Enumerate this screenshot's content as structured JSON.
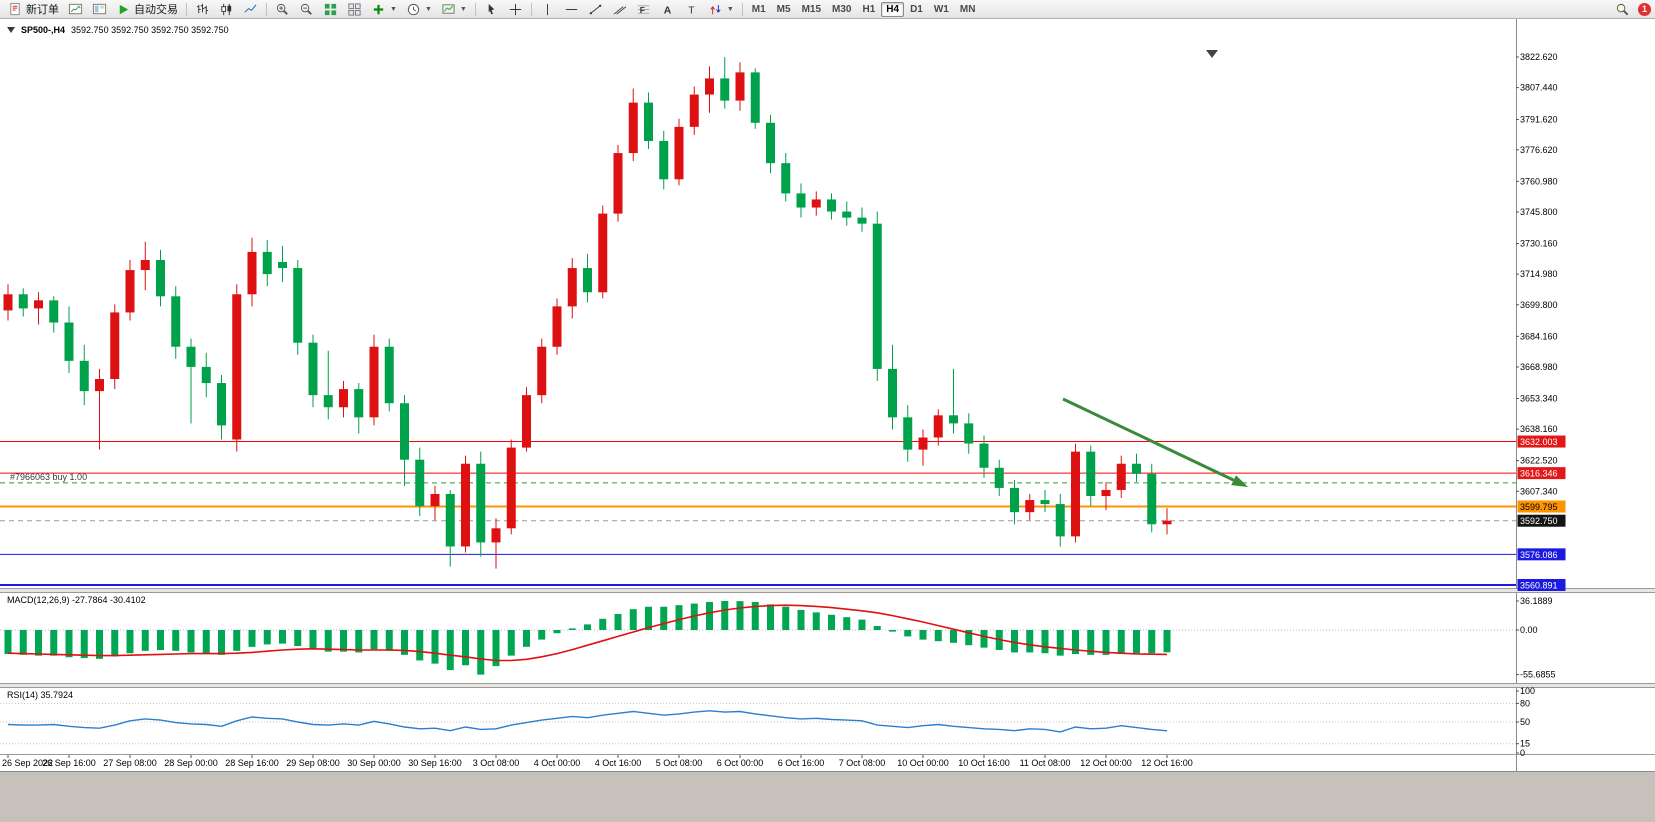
{
  "toolbar": {
    "new_order_label": "新订单",
    "autotrade_label": "自动交易",
    "timeframes": [
      "M1",
      "M5",
      "M15",
      "M30",
      "H1",
      "H4",
      "D1",
      "W1",
      "MN"
    ],
    "active_timeframe": "H4",
    "notification_count": "1"
  },
  "chart": {
    "title_symbol": "SP500-,H4",
    "title_ohlc": "3592.750 3592.750 3592.750 3592.750",
    "macd_label": "MACD(12,26,9) -27.7864 -30.4102",
    "rsi_label": "RSI(14) 35.7924",
    "position_label": "#7966063 buy 1.00",
    "price_axis_labels": [
      "3822.620",
      "3807.440",
      "3791.620",
      "3776.620",
      "3760.980",
      "3745.800",
      "3730.160",
      "3714.980",
      "3699.800",
      "3684.160",
      "3668.980",
      "3653.340",
      "3638.160",
      "3622.520",
      "3607.340"
    ],
    "macd_axis_labels": [
      {
        "text": "36.1889",
        "value": 36.1889
      },
      {
        "text": "0.00",
        "value": 0
      },
      {
        "text": "-55.6855",
        "value": -55.6855
      }
    ],
    "rsi_axis_labels": [
      {
        "text": "100",
        "value": 100
      },
      {
        "text": "80",
        "value": 80
      },
      {
        "text": "50",
        "value": 50
      },
      {
        "text": "15",
        "value": 15
      },
      {
        "text": "0",
        "value": 0
      }
    ],
    "rsi_levels": [
      80,
      50,
      15
    ],
    "time_axis_labels": [
      "26 Sep 2022",
      "26 Sep 16:00",
      "27 Sep 08:00",
      "28 Sep 00:00",
      "28 Sep 16:00",
      "29 Sep 08:00",
      "30 Sep 00:00",
      "30 Sep 16:00",
      "3 Oct 08:00",
      "4 Oct 00:00",
      "4 Oct 16:00",
      "5 Oct 08:00",
      "6 Oct 00:00",
      "6 Oct 16:00",
      "7 Oct 08:00",
      "10 Oct 00:00",
      "10 Oct 16:00",
      "11 Oct 08:00",
      "12 Oct 00:00",
      "12 Oct 16:00"
    ],
    "price_lines": [
      {
        "name": "resistance-line-1",
        "price": 3632.003,
        "label": "3632.003",
        "color": "#ff0000",
        "tag_color": "#e21717",
        "tag_text": "#ffffff",
        "style": "solid",
        "width": 1,
        "tag": true
      },
      {
        "name": "resistance-line-2",
        "price": 3616.346,
        "label": "3616.346",
        "color": "#ff0000",
        "tag_color": "#e21717",
        "tag_text": "#ffffff",
        "style": "solid",
        "width": 1,
        "tag": true
      },
      {
        "name": "buy-position-line",
        "price": 3611.5,
        "label": "#7966063 buy 1.00",
        "color": "#2e9e2e",
        "tag_color": "#2e9e2e",
        "tag_text": "#ffffff",
        "style": "dashed",
        "width": 1,
        "tag": false
      },
      {
        "name": "pending-order-line",
        "price": 3599.795,
        "label": "3599.795",
        "color": "#ff9400",
        "tag_color": "#ff9400",
        "tag_text": "#000000",
        "style": "solid",
        "width": 2,
        "tag": true
      },
      {
        "name": "bid-price-line",
        "price": 3592.75,
        "label": "3592.750",
        "color": "#9a9a9a",
        "tag_color": "#141414",
        "tag_text": "#ffffff",
        "style": "dashed",
        "width": 1,
        "tag": true
      },
      {
        "name": "support-line-1",
        "price": 3576.086,
        "label": "3576.086",
        "color": "#1a1ae0",
        "tag_color": "#1a1ae0",
        "tag_text": "#ffffff",
        "style": "solid",
        "width": 1,
        "tag": true
      },
      {
        "name": "support-line-2",
        "price": 3560.891,
        "label": "3560.891",
        "color": "#1a1ae0",
        "tag_color": "#1a1ae0",
        "tag_text": "#ffffff",
        "style": "solid",
        "width": 2,
        "tag": true
      }
    ]
  },
  "chart_data": {
    "type": "candlestick",
    "symbol": "SP500-",
    "period": "H4",
    "current_ohlc": [
      3592.75,
      3592.75,
      3592.75,
      3592.75
    ],
    "price_range": [
      3560.891,
      3822.62
    ],
    "candles": [
      [
        3697,
        3710,
        3692,
        3705
      ],
      [
        3705,
        3708,
        3694,
        3698
      ],
      [
        3698,
        3706,
        3690,
        3702
      ],
      [
        3702,
        3704,
        3686,
        3691
      ],
      [
        3691,
        3699,
        3666,
        3672
      ],
      [
        3672,
        3680,
        3650,
        3657
      ],
      [
        3657,
        3668,
        3628,
        3663
      ],
      [
        3663,
        3700,
        3658,
        3696
      ],
      [
        3696,
        3722,
        3692,
        3717
      ],
      [
        3717,
        3731,
        3707,
        3722
      ],
      [
        3722,
        3727,
        3699,
        3704
      ],
      [
        3704,
        3709,
        3673,
        3679
      ],
      [
        3679,
        3683,
        3641,
        3669
      ],
      [
        3669,
        3676,
        3654,
        3661
      ],
      [
        3661,
        3665,
        3633,
        3640
      ],
      [
        3633,
        3710,
        3627,
        3705
      ],
      [
        3705,
        3733,
        3699,
        3726
      ],
      [
        3726,
        3732,
        3709,
        3715
      ],
      [
        3721,
        3729,
        3711,
        3718
      ],
      [
        3718,
        3722,
        3675,
        3681
      ],
      [
        3681,
        3685,
        3649,
        3655
      ],
      [
        3655,
        3677,
        3643,
        3649
      ],
      [
        3649,
        3662,
        3644,
        3658
      ],
      [
        3658,
        3661,
        3636,
        3644
      ],
      [
        3644,
        3685,
        3640,
        3679
      ],
      [
        3679,
        3683,
        3647,
        3651
      ],
      [
        3651,
        3655,
        3610,
        3623
      ],
      [
        3623,
        3629,
        3595,
        3600
      ],
      [
        3600,
        3610,
        3593,
        3606
      ],
      [
        3606,
        3608,
        3570,
        3580
      ],
      [
        3580,
        3625,
        3577,
        3621
      ],
      [
        3621,
        3627,
        3575,
        3582
      ],
      [
        3582,
        3594,
        3569,
        3589
      ],
      [
        3589,
        3633,
        3586,
        3629
      ],
      [
        3629,
        3659,
        3627,
        3655
      ],
      [
        3655,
        3683,
        3651,
        3679
      ],
      [
        3679,
        3703,
        3675,
        3699
      ],
      [
        3699,
        3723,
        3693,
        3718
      ],
      [
        3718,
        3725,
        3701,
        3706
      ],
      [
        3706,
        3749,
        3703,
        3745
      ],
      [
        3745,
        3779,
        3741,
        3775
      ],
      [
        3775,
        3807,
        3771,
        3800
      ],
      [
        3800,
        3805,
        3777,
        3781
      ],
      [
        3781,
        3786,
        3757,
        3762
      ],
      [
        3762,
        3792,
        3759,
        3788
      ],
      [
        3788,
        3808,
        3784,
        3804
      ],
      [
        3804,
        3818,
        3795,
        3812
      ],
      [
        3812,
        3822.6,
        3797,
        3801
      ],
      [
        3801,
        3820,
        3796,
        3815
      ],
      [
        3815,
        3817,
        3787,
        3790
      ],
      [
        3790,
        3794,
        3765,
        3770
      ],
      [
        3770,
        3775,
        3751,
        3755
      ],
      [
        3755,
        3760,
        3743,
        3748
      ],
      [
        3748,
        3756,
        3744,
        3752
      ],
      [
        3752,
        3755,
        3742,
        3746
      ],
      [
        3746,
        3751,
        3739,
        3743
      ],
      [
        3743,
        3748,
        3736,
        3740
      ],
      [
        3740,
        3746,
        3662,
        3668
      ],
      [
        3668,
        3680,
        3638,
        3644
      ],
      [
        3644,
        3650,
        3622,
        3628
      ],
      [
        3628,
        3638,
        3620,
        3634
      ],
      [
        3634,
        3648,
        3630,
        3645
      ],
      [
        3645,
        3668,
        3636,
        3641
      ],
      [
        3641,
        3646,
        3626,
        3631
      ],
      [
        3631,
        3635,
        3614,
        3619
      ],
      [
        3619,
        3623,
        3605,
        3609
      ],
      [
        3609,
        3613,
        3591,
        3597
      ],
      [
        3597,
        3606,
        3593,
        3603
      ],
      [
        3603,
        3608,
        3597,
        3601
      ],
      [
        3601,
        3606,
        3580,
        3585
      ],
      [
        3585,
        3631,
        3582,
        3627
      ],
      [
        3627,
        3630,
        3600,
        3605
      ],
      [
        3605,
        3612,
        3598,
        3608
      ],
      [
        3608,
        3625,
        3604,
        3621
      ],
      [
        3621,
        3626,
        3612,
        3616
      ],
      [
        3616,
        3621,
        3587,
        3591
      ],
      [
        3591,
        3599,
        3586,
        3592.75
      ]
    ],
    "indicators": {
      "macd": {
        "params": "12,26,9",
        "last_macd": -27.7864,
        "last_signal": -30.4102,
        "scale_max": 36.1889,
        "scale_min": -55.6855,
        "histogram": [
          -30,
          -31,
          -32,
          -32,
          -34,
          -35,
          -36,
          -33,
          -29,
          -26,
          -25,
          -26,
          -28,
          -29,
          -31,
          -26,
          -21,
          -18,
          -17,
          -20,
          -24,
          -27,
          -27,
          -28,
          -24,
          -26,
          -31,
          -38,
          -42,
          -50,
          -44,
          -55.69,
          -45,
          -32,
          -21,
          -12,
          -4,
          2,
          7,
          14,
          20,
          26,
          29,
          29,
          31,
          33,
          35,
          36.19,
          36,
          35,
          32,
          29,
          25,
          22,
          19,
          16,
          13,
          5,
          -2,
          -8,
          -12,
          -14,
          -16,
          -19,
          -22,
          -25,
          -28,
          -28,
          -29,
          -32,
          -30,
          -31,
          -31,
          -30,
          -29,
          -29,
          -27.79
        ],
        "signal": [
          -29,
          -29.5,
          -30,
          -30.5,
          -31,
          -31.5,
          -32,
          -32,
          -31.5,
          -31,
          -30.5,
          -30,
          -29.5,
          -29.5,
          -29.5,
          -29,
          -28,
          -26.5,
          -25,
          -24,
          -23.5,
          -24,
          -24.5,
          -25,
          -25,
          -25,
          -25.5,
          -27,
          -29,
          -31.5,
          -33.5,
          -36,
          -38,
          -38,
          -36.5,
          -33.5,
          -29.5,
          -24.5,
          -19,
          -13.5,
          -8,
          -2.5,
          3,
          8,
          13,
          17.5,
          21.5,
          25,
          27.5,
          29.5,
          30.5,
          31,
          30.5,
          29.5,
          28,
          26,
          24,
          21.5,
          18,
          14,
          10,
          5.5,
          1,
          -3.5,
          -8,
          -12,
          -15.5,
          -18.5,
          -21,
          -23,
          -25,
          -26.5,
          -28,
          -29,
          -29.8,
          -30.2,
          -30.41
        ]
      },
      "rsi": {
        "params": "14",
        "last": 35.7924,
        "values": [
          46,
          45,
          45,
          46,
          43,
          41,
          40,
          45,
          52,
          55,
          53,
          49,
          47,
          46,
          43,
          52,
          58,
          56,
          55,
          50,
          46,
          45,
          47,
          45,
          51,
          47,
          42,
          39,
          40,
          36,
          42,
          38,
          39,
          45,
          49,
          53,
          56,
          59,
          57,
          61,
          64,
          67,
          64,
          61,
          63,
          66,
          68,
          66,
          67,
          63,
          60,
          57,
          55,
          56,
          54,
          53,
          52,
          45,
          43,
          41,
          44,
          46,
          43,
          41,
          39,
          38,
          36,
          39,
          38,
          34,
          42,
          39,
          40,
          44,
          41,
          38,
          35.79
        ]
      }
    },
    "annotations": [
      {
        "type": "arrow",
        "name": "downtrend-arrow",
        "color": "#3a8a3a"
      }
    ],
    "colors": {
      "bull": "#dd1111",
      "bear": "#00a14b",
      "macd_hist": "#00a651",
      "macd_signal": "#e01010",
      "rsi": "#2a7fce"
    }
  }
}
